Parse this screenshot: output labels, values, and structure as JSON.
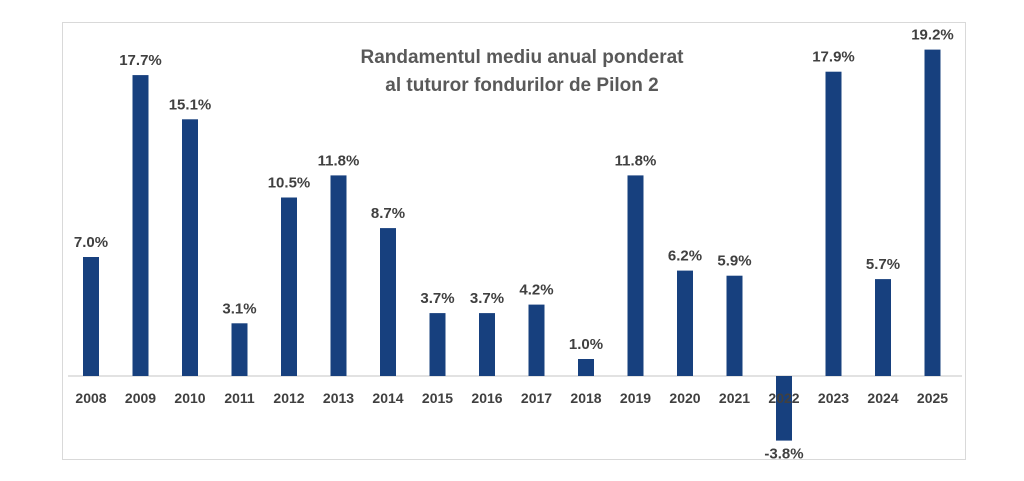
{
  "chart_data": {
    "type": "bar",
    "title": "Randamentul mediu anual ponderat al tuturor fondurilor de Pilon 2",
    "title_lines": [
      "Randamentul mediu anual ponderat",
      "al tuturor fondurilor de Pilon 2"
    ],
    "categories": [
      "2008",
      "2009",
      "2010",
      "2011",
      "2012",
      "2013",
      "2014",
      "2015",
      "2016",
      "2017",
      "2018",
      "2019",
      "2020",
      "2021",
      "2022",
      "2023",
      "2024",
      "2025"
    ],
    "values": [
      7.0,
      17.7,
      15.1,
      3.1,
      10.5,
      11.8,
      8.7,
      3.7,
      3.7,
      4.2,
      1.0,
      11.8,
      6.2,
      5.9,
      -3.8,
      17.9,
      5.7,
      19.2
    ],
    "data_labels": [
      "7.0%",
      "17.7%",
      "15.1%",
      "3.1%",
      "10.5%",
      "11.8%",
      "8.7%",
      "3.7%",
      "3.7%",
      "4.2%",
      "1.0%",
      "11.8%",
      "6.2%",
      "5.9%",
      "-3.8%",
      "17.9%",
      "5.7%",
      "19.2%"
    ],
    "unit": "%",
    "xlabel": "",
    "ylabel": "",
    "grid": false,
    "legend": "none",
    "bar_color": "#17407e"
  }
}
